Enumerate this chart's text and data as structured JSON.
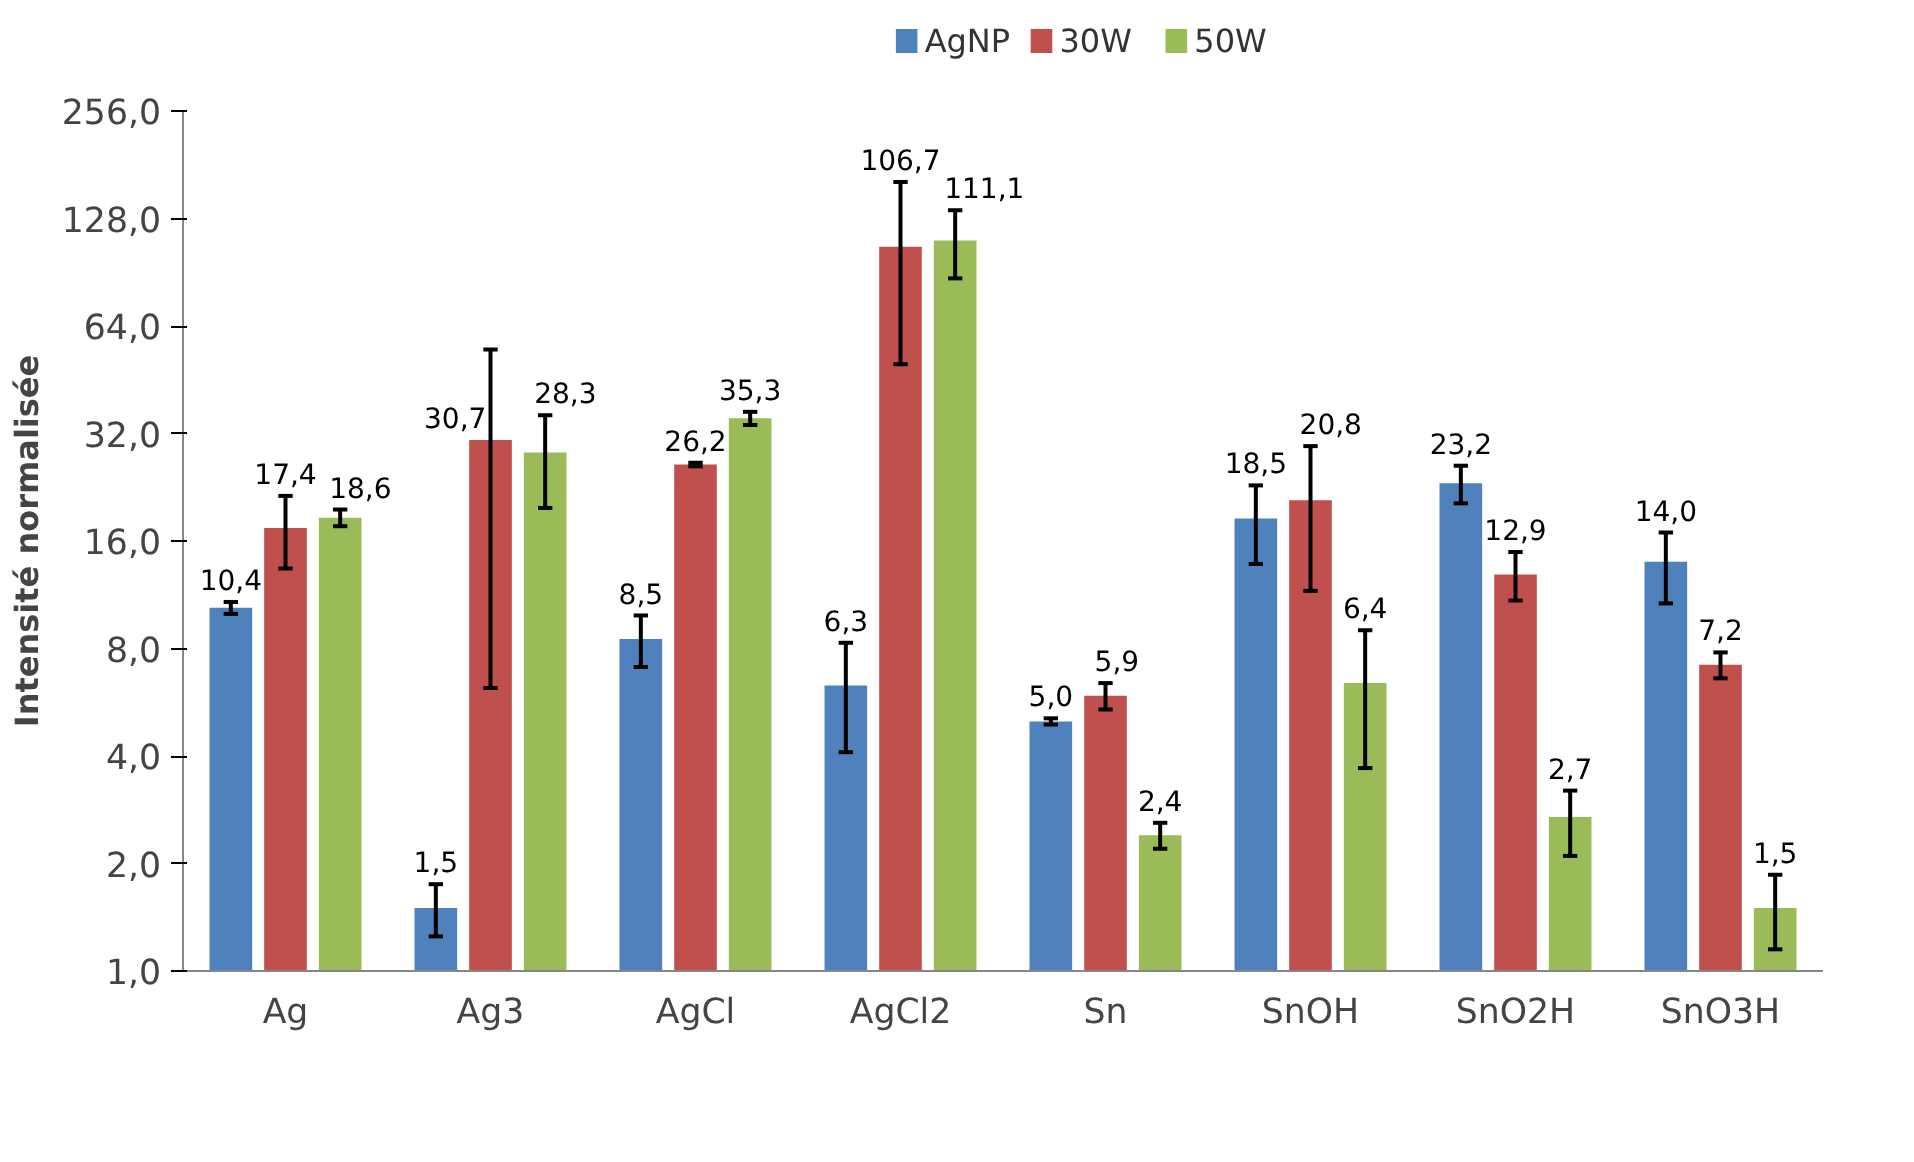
{
  "chart_data": {
    "type": "bar",
    "ylabel": "Intensité normalisée",
    "categories": [
      "Ag",
      "Ag3",
      "AgCl",
      "AgCl2",
      "Sn",
      "SnOH",
      "SnO2H",
      "SnO3H"
    ],
    "series": [
      {
        "name": "AgNP",
        "color": "#4f81bd",
        "values": [
          10.4,
          1.5,
          8.5,
          6.3,
          5.0,
          18.5,
          23.2,
          14.0
        ],
        "value_labels": [
          "10,4",
          "1,5",
          "8,5",
          "6,3",
          "5,0",
          "18,5",
          "23,2",
          "14,0"
        ],
        "errors": [
          0.4,
          0.25,
          1.4,
          [
            4.1,
            8.3
          ],
          0.1,
          [
            13.8,
            22.9
          ],
          2.8,
          [
            10.7,
            16.9
          ]
        ]
      },
      {
        "name": "30W",
        "color": "#c0504d",
        "values": [
          17.4,
          30.7,
          26.2,
          106.7,
          5.9,
          20.8,
          12.9,
          7.2
        ],
        "value_labels": [
          "17,4",
          "30,7",
          "26,2",
          "106,7",
          "5,9",
          "20,8",
          "12,9",
          "7,2"
        ],
        "errors": [
          4,
          [
            6.2,
            55
          ],
          0.3,
          [
            50,
            162
          ],
          0.5,
          [
            11.6,
            29.5
          ],
          2,
          0.6
        ]
      },
      {
        "name": "50W",
        "color": "#9bbb59",
        "values": [
          18.6,
          28.3,
          35.3,
          111.1,
          2.4,
          6.4,
          2.7,
          1.5
        ],
        "value_labels": [
          "18,6",
          "28,3",
          "35,3",
          "111,1",
          "2,4",
          "6,4",
          "2,7",
          "1,5"
        ],
        "errors": [
          1,
          [
            19.8,
            36
          ],
          1.5,
          [
            87,
            135
          ],
          0.2,
          [
            3.7,
            9.0
          ],
          [
            2.1,
            3.2
          ],
          [
            1.15,
            1.86
          ]
        ]
      }
    ],
    "log": true,
    "ylim": [
      1,
      256
    ],
    "yticks": [
      {
        "value": 1,
        "label": "1,0"
      },
      {
        "value": 2,
        "label": "2,0"
      },
      {
        "value": 4,
        "label": "4,0"
      },
      {
        "value": 8,
        "label": "8,0"
      },
      {
        "value": 16,
        "label": "16,0"
      },
      {
        "value": 32,
        "label": "32,0"
      },
      {
        "value": 64,
        "label": "64,0"
      },
      {
        "value": 128,
        "label": "128,0"
      },
      {
        "value": 256,
        "label": "256,0"
      }
    ],
    "grid": false,
    "legend": "top"
  }
}
